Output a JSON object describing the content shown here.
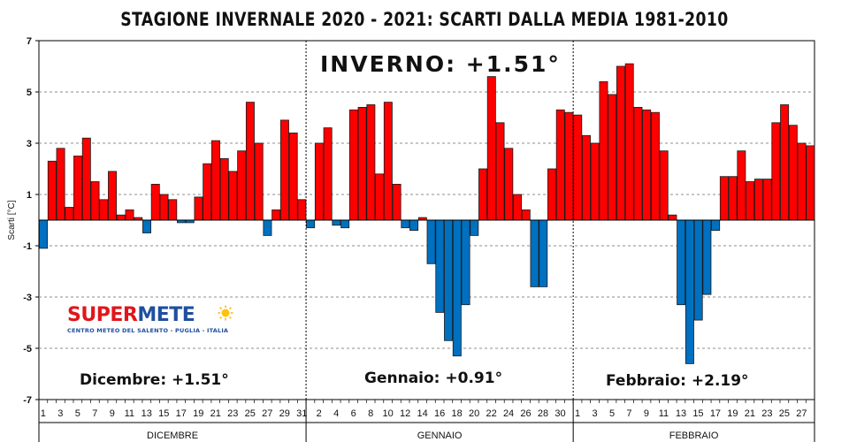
{
  "chart_data": {
    "type": "bar",
    "title": "STAGIONE INVERNALE 2020 - 2021: SCARTI DALLA MEDIA 1981-2010",
    "ylabel": "Scarti [°C]",
    "ylim": [
      -7,
      7
    ],
    "yticks": [
      7,
      5,
      3,
      1,
      -1,
      -3,
      -5,
      -7
    ],
    "colors": {
      "positive": "#ff0000",
      "negative": "#0070c0",
      "border": "#1a1a1a"
    },
    "annotation": "INVERNO: +1.51°",
    "months": [
      {
        "name": "DICEMBRE",
        "summary": "Dicembre: +1.51°",
        "tick_labels": [
          "1",
          "3",
          "5",
          "7",
          "9",
          "11",
          "13",
          "15",
          "17",
          "19",
          "21",
          "23",
          "25",
          "27",
          "29",
          "31"
        ],
        "values": [
          -1.1,
          2.3,
          2.8,
          0.5,
          2.5,
          3.2,
          1.5,
          0.8,
          1.9,
          0.2,
          0.4,
          0.1,
          -0.5,
          1.4,
          1.0,
          0.8,
          -0.1,
          -0.1,
          0.9,
          2.2,
          3.1,
          2.4,
          1.9,
          2.7,
          4.6,
          3.0,
          -0.6,
          0.4,
          3.9,
          3.4,
          0.8
        ]
      },
      {
        "name": "GENNAIO",
        "summary": "Gennaio: +0.91°",
        "tick_labels": [
          "2",
          "4",
          "6",
          "8",
          "10",
          "12",
          "14",
          "16",
          "18",
          "20",
          "22",
          "24",
          "26",
          "28",
          "30"
        ],
        "values": [
          -0.3,
          3.0,
          3.6,
          -0.2,
          -0.3,
          4.3,
          4.4,
          4.5,
          1.8,
          4.6,
          1.4,
          -0.3,
          -0.4,
          0.1,
          -1.7,
          -3.6,
          -4.7,
          -5.3,
          -3.3,
          -0.6,
          2.0,
          5.6,
          3.8,
          2.8,
          1.0,
          0.4,
          -2.6,
          -2.6,
          2.0,
          4.3,
          4.2
        ]
      },
      {
        "name": "FEBBRAIO",
        "summary": "Febbraio: +2.19°",
        "tick_labels": [
          "1",
          "3",
          "5",
          "7",
          "9",
          "11",
          "13",
          "15",
          "17",
          "19",
          "21",
          "23",
          "25",
          "27"
        ],
        "values": [
          4.1,
          3.3,
          3.0,
          5.4,
          4.9,
          6.0,
          6.1,
          4.4,
          4.3,
          4.2,
          2.7,
          0.2,
          -3.3,
          -5.6,
          -3.9,
          -2.9,
          -0.4,
          1.7,
          1.7,
          2.7,
          1.5,
          1.6,
          1.6,
          3.8,
          4.5,
          3.7,
          3.0,
          2.9
        ]
      }
    ]
  },
  "logo": {
    "part1": "SUPER",
    "part2": "METE",
    "subtitle": "CENTRO METEO DEL SALENTO - PUGLIA - ITALIA",
    "icon": "sun-icon"
  }
}
